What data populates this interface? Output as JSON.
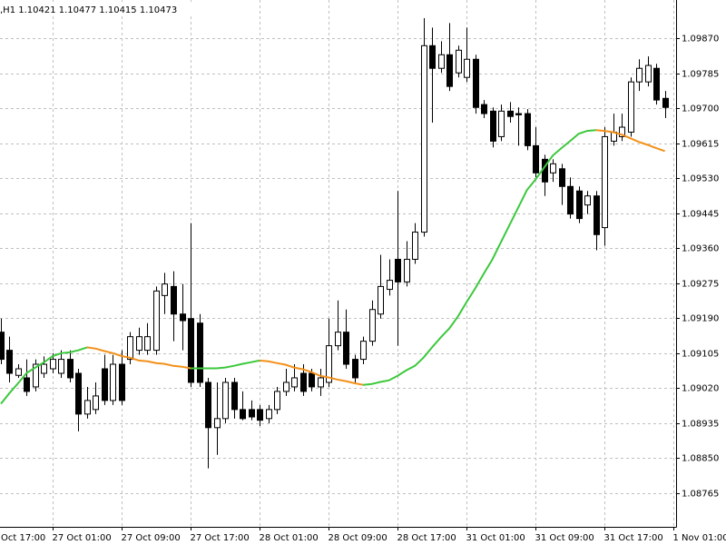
{
  "chart_data": {
    "type": "candlestick",
    "title": ",H1  1.10421 1.10477 1.10415 1.10473",
    "x": [
      0,
      1,
      2,
      3,
      4,
      5,
      6,
      7,
      8,
      9,
      10,
      11,
      12,
      13,
      14,
      15,
      16,
      17,
      18,
      19,
      20,
      21,
      22,
      23,
      24,
      25,
      26,
      27,
      28,
      29,
      30,
      31,
      32,
      33,
      34,
      35,
      36,
      37,
      38,
      39,
      40,
      41,
      42,
      43,
      44,
      45,
      46,
      47,
      48,
      49,
      50,
      51,
      52,
      53,
      54,
      55,
      56,
      57,
      58,
      59,
      60,
      61,
      62,
      63,
      64,
      65,
      66,
      67,
      68,
      69,
      70,
      71,
      72,
      73,
      74,
      75,
      76,
      77
    ],
    "xlim": [
      -0.1,
      78.3
    ],
    "xticks": [
      {
        "value": -2,
        "label": "Oct 17:00"
      },
      {
        "value": 6,
        "label": "27 Oct 01:00"
      },
      {
        "value": 14,
        "label": "27 Oct 09:00"
      },
      {
        "value": 22,
        "label": "27 Oct 17:00"
      },
      {
        "value": 30,
        "label": "28 Oct 01:00"
      },
      {
        "value": 38,
        "label": "28 Oct 09:00"
      },
      {
        "value": 46,
        "label": "28 Oct 17:00"
      },
      {
        "value": 54,
        "label": "31 Oct 01:00"
      },
      {
        "value": 62,
        "label": "31 Oct 09:00"
      },
      {
        "value": 70,
        "label": "31 Oct 17:00"
      },
      {
        "value": 78,
        "label": "1 Nov 01:00"
      }
    ],
    "open": [
      1.09156,
      1.09112,
      1.09051,
      1.09045,
      1.09023,
      1.09056,
      1.09067,
      1.09056,
      1.0909,
      1.09056,
      1.08957,
      1.08968,
      1.09067,
      1.0899,
      1.09078,
      1.0909,
      1.09112,
      1.09112,
      1.09112,
      1.09245,
      1.09267,
      1.092,
      1.09189,
      1.09178,
      1.09034,
      1.08924,
      1.08946,
      1.09034,
      1.08968,
      1.08968,
      1.08968,
      1.08946,
      1.08968,
      1.09012,
      1.09023,
      1.09056,
      1.09056,
      1.09023,
      1.09034,
      1.09123,
      1.09156,
      1.0909,
      1.0909,
      1.09134,
      1.092,
      1.0926,
      1.09333,
      1.09278,
      1.09333,
      1.09399,
      1.09852,
      1.09797,
      1.0983,
      1.09786,
      1.09775,
      1.09819,
      1.09709,
      1.09693,
      1.09631,
      1.09693,
      1.09687,
      1.09687,
      1.09609,
      1.09576,
      1.09543,
      1.09553,
      1.0951,
      1.09499,
      1.09465,
      1.09487,
      1.0941,
      1.0962,
      1.09631,
      1.09642,
      1.09764,
      1.09764,
      1.09797,
      1.09724
    ],
    "high": [
      1.09189,
      1.09145,
      1.09078,
      1.0909,
      1.0909,
      1.09097,
      1.09105,
      1.09112,
      1.09112,
      1.09067,
      1.09023,
      1.09034,
      1.09101,
      1.09101,
      1.09112,
      1.09156,
      1.09167,
      1.09178,
      1.09267,
      1.093,
      1.09304,
      1.09273,
      1.09421,
      1.092,
      1.09045,
      1.09034,
      1.09045,
      1.09045,
      1.09012,
      1.0899,
      1.08979,
      1.08979,
      1.09023,
      1.09067,
      1.09078,
      1.09078,
      1.09067,
      1.09067,
      1.09189,
      1.09233,
      1.09211,
      1.09101,
      1.09145,
      1.09233,
      1.09344,
      1.09333,
      1.09499,
      1.09377,
      1.09421,
      1.09919,
      1.09896,
      1.09863,
      1.09907,
      1.09852,
      1.09896,
      1.0983,
      1.0972,
      1.09702,
      1.09709,
      1.09715,
      1.09702,
      1.09698,
      1.09654,
      1.09587,
      1.09576,
      1.09565,
      1.09532,
      1.0951,
      1.09499,
      1.09499,
      1.09654,
      1.09687,
      1.09687,
      1.09775,
      1.09819,
      1.09826,
      1.09808,
      1.09742
    ],
    "low": [
      1.09078,
      1.09034,
      1.09045,
      1.09001,
      1.09012,
      1.09045,
      1.09056,
      1.09045,
      1.09034,
      1.08915,
      1.08946,
      1.08957,
      1.08979,
      1.08979,
      1.08979,
      1.09078,
      1.09101,
      1.09101,
      1.09101,
      1.092,
      1.09134,
      1.09112,
      1.09023,
      1.09023,
      1.08825,
      1.08858,
      1.08935,
      1.08946,
      1.08942,
      1.08942,
      1.08928,
      1.08935,
      1.08957,
      1.09001,
      1.09012,
      1.09001,
      1.09012,
      1.09001,
      1.09023,
      1.09112,
      1.09067,
      1.09034,
      1.09078,
      1.09123,
      1.09189,
      1.09245,
      1.09123,
      1.09267,
      1.09322,
      1.09388,
      1.09665,
      1.09786,
      1.09742,
      1.09775,
      1.09764,
      1.09687,
      1.09676,
      1.09605,
      1.0962,
      1.09665,
      1.09609,
      1.09598,
      1.09532,
      1.09487,
      1.09521,
      1.09465,
      1.09432,
      1.09421,
      1.09443,
      1.09355,
      1.09366,
      1.09609,
      1.0962,
      1.09631,
      1.09742,
      1.09753,
      1.09709,
      1.09676
    ],
    "close": [
      1.0909,
      1.09056,
      1.09067,
      1.09012,
      1.09078,
      1.09078,
      1.0909,
      1.0909,
      1.09045,
      1.08957,
      1.0899,
      1.09001,
      1.0899,
      1.09078,
      1.0899,
      1.09145,
      1.09145,
      1.09145,
      1.09256,
      1.09273,
      1.092,
      1.09184,
      1.09034,
      1.09034,
      1.08924,
      1.08946,
      1.09034,
      1.08968,
      1.08946,
      1.0895,
      1.08942,
      1.08968,
      1.09012,
      1.09034,
      1.09045,
      1.09012,
      1.09023,
      1.09045,
      1.09123,
      1.09156,
      1.09078,
      1.09045,
      1.09134,
      1.09211,
      1.09267,
      1.09282,
      1.09278,
      1.09333,
      1.09399,
      1.09852,
      1.09797,
      1.0983,
      1.09753,
      1.09841,
      1.09819,
      1.09702,
      1.09687,
      1.0962,
      1.09693,
      1.0968,
      1.09684,
      1.09609,
      1.09543,
      1.09521,
      1.09565,
      1.0951,
      1.09443,
      1.09432,
      1.09487,
      1.09393,
      1.09631,
      1.09642,
      1.09654,
      1.09764,
      1.09797,
      1.09804,
      1.0972,
      1.09702
    ],
    "up_color": "#ffffff",
    "down_color": "#000000",
    "overlay": {
      "type": "line",
      "values": [
        1.08982,
        1.09008,
        1.09032,
        1.09057,
        1.0907,
        1.09083,
        1.09098,
        1.09105,
        1.09107,
        1.09112,
        1.09119,
        1.09116,
        1.0911,
        1.09105,
        1.09098,
        1.09094,
        1.09087,
        1.09085,
        1.09081,
        1.09079,
        1.09074,
        1.09072,
        1.09068,
        1.09068,
        1.09068,
        1.09068,
        1.0907,
        1.09074,
        1.09079,
        1.09083,
        1.09087,
        1.09085,
        1.09081,
        1.09077,
        1.0907,
        1.09066,
        1.09059,
        1.0905,
        1.09046,
        1.09041,
        1.09037,
        1.09032,
        1.09028,
        1.0903,
        1.09035,
        1.09039,
        1.0905,
        1.09063,
        1.09074,
        1.09094,
        1.09119,
        1.09143,
        1.09165,
        1.09194,
        1.09229,
        1.09262,
        1.09298,
        1.09333,
        1.09375,
        1.09417,
        1.09459,
        1.09501,
        1.09527,
        1.09556,
        1.09585,
        1.09603,
        1.0962,
        1.09638,
        1.09645,
        1.09647,
        1.09645,
        1.09642,
        1.09636,
        1.09627,
        1.09618,
        1.09611,
        1.09603,
        1.09596
      ],
      "up_color": "#3cc83c",
      "down_color": "#f39019"
    },
    "ylim": [
      1.08683,
      1.09963
    ],
    "yticks": [
      1.08765,
      {
        "value": 1.0885,
        "label": "1.08850"
      },
      1.08935,
      {
        "value": 1.0902,
        "label": "1.09020"
      },
      1.09105,
      {
        "value": 1.0919,
        "label": "1.09190"
      },
      1.09275,
      {
        "value": 1.0936,
        "label": "1.09360"
      },
      1.09445,
      {
        "value": 1.0953,
        "label": "1.09530"
      },
      1.09615,
      {
        "value": 1.097,
        "label": "1.09700"
      },
      1.09785,
      {
        "value": 1.0987,
        "label": "1.09870"
      }
    ],
    "grid": true
  }
}
